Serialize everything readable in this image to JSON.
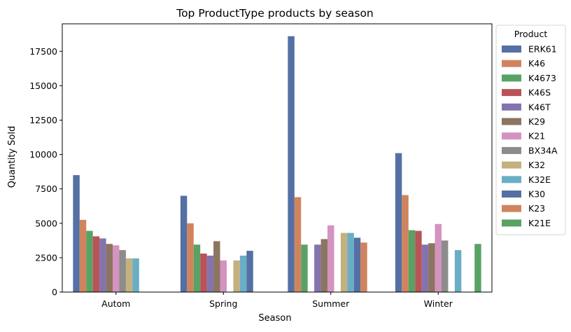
{
  "chart_data": {
    "type": "bar",
    "title": "Top ProductType products by season",
    "xlabel": "Season",
    "ylabel": "Quantity Sold",
    "categories": [
      "Autom",
      "Spring",
      "Summer",
      "Winter"
    ],
    "ylim": [
      0,
      19500
    ],
    "yticks": [
      0,
      2500,
      5000,
      7500,
      10000,
      12500,
      15000,
      17500
    ],
    "ytick_labels": [
      "0",
      "2500",
      "5000",
      "7500",
      "10000",
      "12500",
      "15000",
      "17500"
    ],
    "grid": false,
    "legend": {
      "title": "Product",
      "placement": "outside-right-top"
    },
    "series": [
      {
        "name": "ERK61",
        "color": "#5470a4",
        "values": [
          8500,
          7000,
          18600,
          10100
        ]
      },
      {
        "name": "K46",
        "color": "#d0845d",
        "values": [
          5250,
          5000,
          6900,
          7050
        ]
      },
      {
        "name": "K4673",
        "color": "#59a265",
        "values": [
          4450,
          3450,
          3450,
          4500
        ]
      },
      {
        "name": "K46S",
        "color": "#b95357",
        "values": [
          4050,
          2800,
          null,
          4450
        ]
      },
      {
        "name": "K46T",
        "color": "#8573ad",
        "values": [
          3900,
          2650,
          3450,
          3450
        ]
      },
      {
        "name": "K29",
        "color": "#8c7560",
        "values": [
          3500,
          3700,
          3850,
          3550
        ]
      },
      {
        "name": "K21",
        "color": "#d593c0",
        "values": [
          3400,
          2300,
          4850,
          4950
        ]
      },
      {
        "name": "BX34A",
        "color": "#8c8c8c",
        "values": [
          3050,
          null,
          null,
          3750
        ]
      },
      {
        "name": "K32",
        "color": "#c3b17f",
        "values": [
          2450,
          2300,
          4300,
          null
        ]
      },
      {
        "name": "K32E",
        "color": "#6aaec6",
        "values": [
          2450,
          2650,
          4300,
          3050
        ]
      },
      {
        "name": "K30",
        "color": "#5470a4",
        "values": [
          null,
          3000,
          3950,
          null
        ]
      },
      {
        "name": "K23",
        "color": "#d0845d",
        "values": [
          null,
          null,
          3600,
          null
        ]
      },
      {
        "name": "K21E",
        "color": "#59a265",
        "values": [
          null,
          null,
          null,
          3500
        ]
      }
    ]
  }
}
